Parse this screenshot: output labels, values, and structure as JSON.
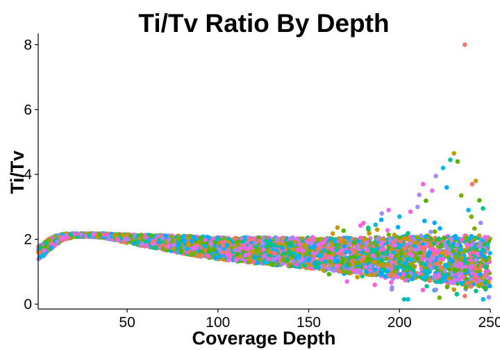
{
  "chart_data": {
    "type": "scatter",
    "title": "Ti/Tv Ratio By Depth",
    "xlabel": "Coverage Depth",
    "ylabel": "Ti/Tv",
    "xlim": [
      1,
      250
    ],
    "ylim": [
      -0.15,
      8.35
    ],
    "xticks": [
      50,
      100,
      150,
      200,
      250
    ],
    "yticks": [
      0,
      2,
      4,
      6,
      8
    ],
    "grid": false,
    "legend": "none",
    "palette": [
      "#F8766D",
      "#C49A00",
      "#53B400",
      "#00C094",
      "#00B6EB",
      "#A58AFF",
      "#FB61D7",
      "#E76BF3",
      "#00A9FF",
      "#7CAE00"
    ],
    "trend": {
      "x": [
        1,
        5,
        10,
        15,
        20,
        25,
        30,
        35,
        40,
        50,
        60,
        70,
        80,
        100,
        120,
        150,
        175,
        200,
        225,
        250
      ],
      "center": [
        1.55,
        1.75,
        1.95,
        2.08,
        2.12,
        2.13,
        2.13,
        2.12,
        2.09,
        2.02,
        1.96,
        1.9,
        1.84,
        1.72,
        1.66,
        1.58,
        1.5,
        1.44,
        1.38,
        1.32
      ],
      "half_spread": [
        0.22,
        0.2,
        0.15,
        0.09,
        0.06,
        0.05,
        0.05,
        0.06,
        0.08,
        0.13,
        0.18,
        0.22,
        0.27,
        0.34,
        0.4,
        0.47,
        0.55,
        0.63,
        0.72,
        0.8
      ]
    },
    "outliers": [
      {
        "x": 236,
        "y": 8.0
      },
      {
        "x": 230,
        "y": 4.65
      },
      {
        "x": 232,
        "y": 4.4
      },
      {
        "x": 228,
        "y": 4.45
      },
      {
        "x": 224,
        "y": 4.2
      },
      {
        "x": 220,
        "y": 3.95
      },
      {
        "x": 213,
        "y": 3.7
      },
      {
        "x": 218,
        "y": 3.5
      },
      {
        "x": 226,
        "y": 3.6
      },
      {
        "x": 234,
        "y": 3.35
      },
      {
        "x": 240,
        "y": 3.7
      },
      {
        "x": 242,
        "y": 3.8
      },
      {
        "x": 244,
        "y": 3.2
      },
      {
        "x": 246,
        "y": 2.95
      },
      {
        "x": 238,
        "y": 2.9
      },
      {
        "x": 210,
        "y": 3.0
      },
      {
        "x": 206,
        "y": 2.85
      },
      {
        "x": 194,
        "y": 2.9
      },
      {
        "x": 190,
        "y": 2.6
      },
      {
        "x": 222,
        "y": 0.2
      },
      {
        "x": 236,
        "y": 0.25
      },
      {
        "x": 230,
        "y": 0.45
      },
      {
        "x": 247,
        "y": 0.5
      },
      {
        "x": 215,
        "y": 0.55
      }
    ]
  }
}
